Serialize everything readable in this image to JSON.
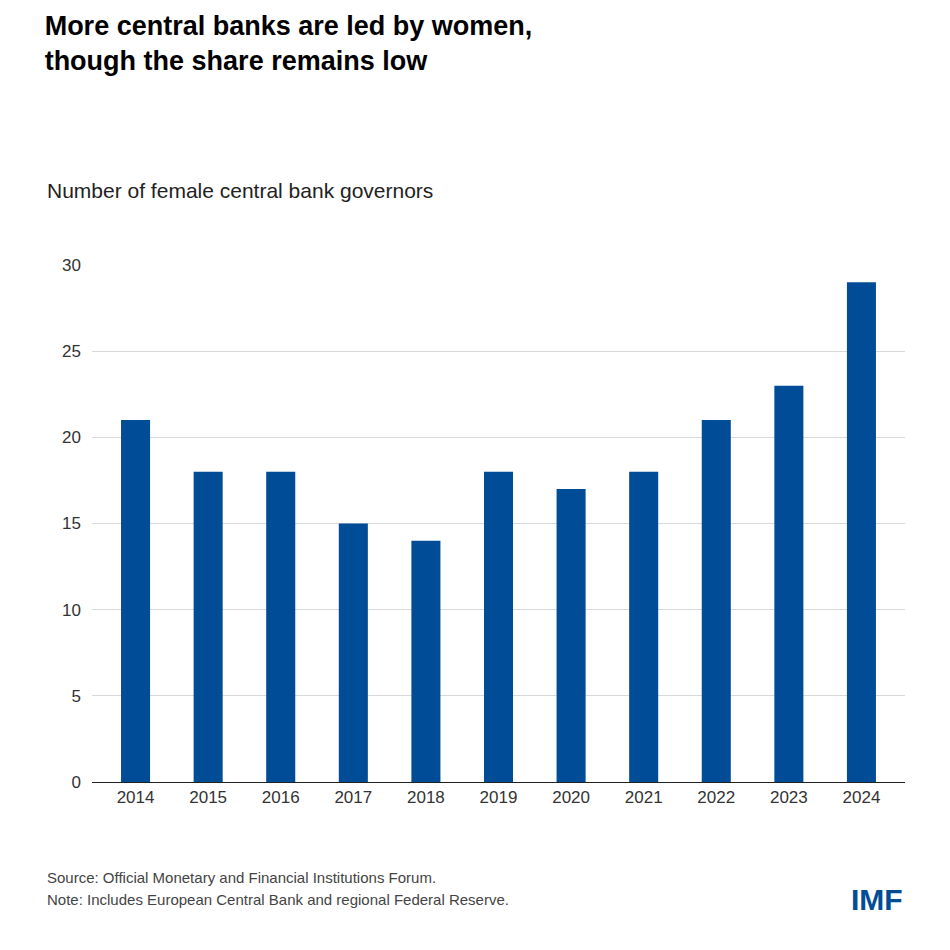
{
  "chart_data": {
    "type": "bar",
    "title": "More central banks are led by women,\nthough the share remains low",
    "subtitle": "Number of female central bank governors",
    "categories": [
      "2014",
      "2015",
      "2016",
      "2017",
      "2018",
      "2019",
      "2020",
      "2021",
      "2022",
      "2023",
      "2024"
    ],
    "values": [
      21,
      18,
      18,
      15,
      14,
      18,
      17,
      18,
      21,
      23,
      29
    ],
    "color": "#004c97",
    "ylim": [
      0,
      30
    ],
    "yticks": [
      0,
      5,
      10,
      15,
      20,
      25,
      30
    ],
    "grid": true,
    "source": "Source: Official Monetary and Financial Institutions Forum.",
    "note": "Note: Includes European Central Bank and regional Federal Reserve.",
    "brand": "IMF"
  }
}
